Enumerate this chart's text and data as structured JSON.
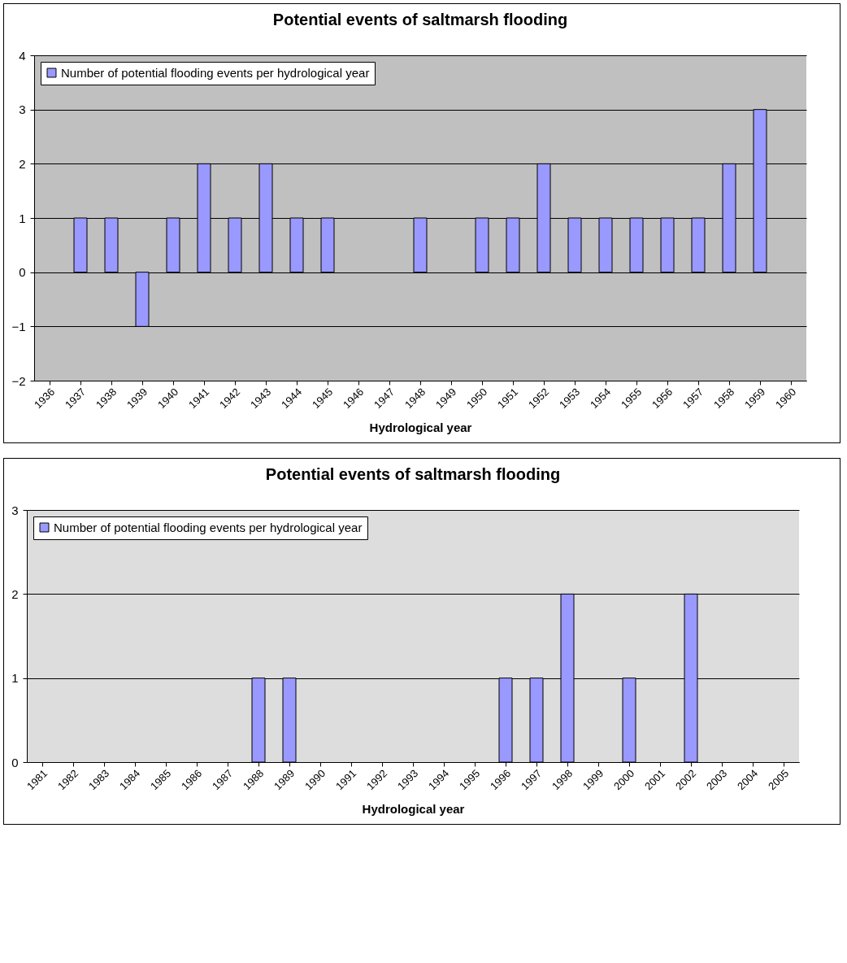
{
  "chart_data": [
    {
      "type": "bar",
      "title": "Potential events of saltmarsh flooding",
      "xlabel": "Hydrological year",
      "categories": [
        "1936",
        "1937",
        "1938",
        "1939",
        "1940",
        "1941",
        "1942",
        "1943",
        "1944",
        "1945",
        "1946",
        "1947",
        "1948",
        "1949",
        "1950",
        "1951",
        "1952",
        "1953",
        "1954",
        "1955",
        "1956",
        "1957",
        "1958",
        "1959",
        "1960"
      ],
      "series": [
        {
          "name": "Number of potential flooding events per hydrological year",
          "color": "#9999ff",
          "values": [
            null,
            1,
            1,
            -1,
            1,
            2,
            1,
            2,
            1,
            1,
            null,
            null,
            1,
            null,
            1,
            1,
            2,
            1,
            1,
            1,
            1,
            1,
            2,
            3,
            null
          ]
        }
      ],
      "ylim": [
        -2,
        4
      ],
      "yticks": [
        -2,
        -1,
        0,
        1,
        2,
        3,
        4
      ],
      "grid": "y",
      "legend": "top left"
    },
    {
      "type": "bar",
      "title": "Potential events of saltmarsh flooding",
      "xlabel": "Hydrological year",
      "categories": [
        "1981",
        "1982",
        "1983",
        "1984",
        "1985",
        "1986",
        "1987",
        "1988",
        "1989",
        "1990",
        "1991",
        "1992",
        "1993",
        "1994",
        "1995",
        "1996",
        "1997",
        "1998",
        "1999",
        "2000",
        "2001",
        "2002",
        "2003",
        "2004",
        "2005"
      ],
      "series": [
        {
          "name": "Number of potential flooding events per hydrological year",
          "color": "#9999ff",
          "values": [
            null,
            null,
            null,
            null,
            null,
            null,
            null,
            1,
            1,
            null,
            null,
            null,
            null,
            null,
            null,
            1,
            1,
            2,
            null,
            1,
            null,
            2,
            null,
            null,
            null
          ]
        }
      ],
      "ylim": [
        0,
        3
      ],
      "yticks": [
        0,
        1,
        2,
        3
      ],
      "grid": "y",
      "legend": "top left"
    }
  ]
}
